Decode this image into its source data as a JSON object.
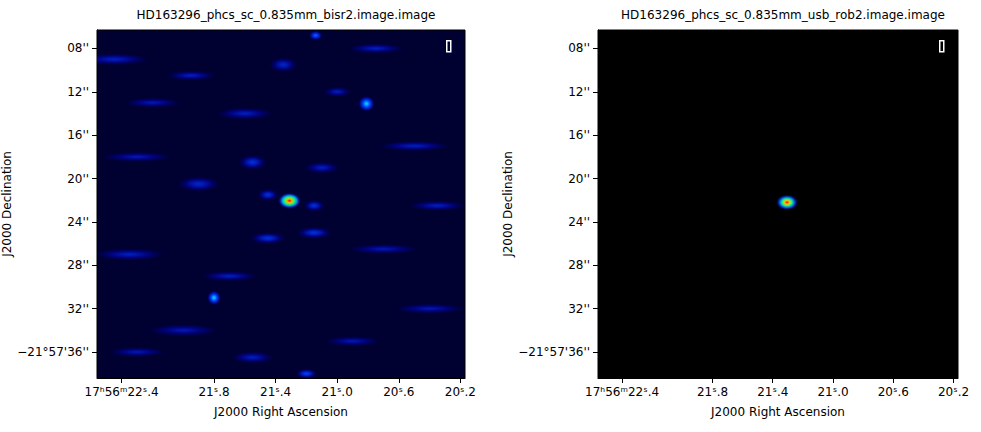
{
  "chart_data": [
    {
      "type": "image",
      "title": "HD163296_phcs_sc_0.835mm_bisr2.image.image",
      "x_label": "J2000 Right Ascension",
      "y_label": "J2000 Declination",
      "xlim": [
        22.56,
        20.17
      ],
      "xticks": [
        {
          "value": 22.4,
          "label": "17ʰ56ᵐ22ˢ.4"
        },
        {
          "value": 21.8,
          "label": "21ˢ.8"
        },
        {
          "value": 21.4,
          "label": "21ˢ.4"
        },
        {
          "value": 21.0,
          "label": "21ˢ.0"
        },
        {
          "value": 20.6,
          "label": "20ˢ.6"
        },
        {
          "value": 20.2,
          "label": "20ˢ.2"
        }
      ],
      "ylim": [
        38.4,
        6.3
      ],
      "yticks": [
        {
          "value": 8,
          "label": "08''"
        },
        {
          "value": 12,
          "label": "12''"
        },
        {
          "value": 16,
          "label": "16''"
        },
        {
          "value": 20,
          "label": "20''"
        },
        {
          "value": 24,
          "label": "24''"
        },
        {
          "value": 28,
          "label": "28''"
        },
        {
          "value": 32,
          "label": "32''"
        },
        {
          "value": 36,
          "label": "−21°57'36''"
        }
      ],
      "grid": false,
      "vlim": [
        0,
        1
      ],
      "floor": 0.08,
      "sources": [
        {
          "ra": 22.45,
          "dec": 9.0,
          "peak": 0.3,
          "width": 0.5,
          "height": 1.2
        },
        {
          "ra": 22.2,
          "dec": 13.0,
          "peak": 0.28,
          "width": 0.4,
          "height": 1.0
        },
        {
          "ra": 21.95,
          "dec": 10.5,
          "peak": 0.3,
          "width": 0.35,
          "height": 1.0
        },
        {
          "ra": 21.6,
          "dec": 14.0,
          "peak": 0.3,
          "width": 0.4,
          "height": 1.2
        },
        {
          "ra": 22.3,
          "dec": 18.0,
          "peak": 0.28,
          "width": 0.5,
          "height": 1.0
        },
        {
          "ra": 21.9,
          "dec": 20.5,
          "peak": 0.32,
          "width": 0.3,
          "height": 1.5
        },
        {
          "ra": 21.55,
          "dec": 18.5,
          "peak": 0.35,
          "width": 0.2,
          "height": 1.5
        },
        {
          "ra": 21.45,
          "dec": 25.5,
          "peak": 0.35,
          "width": 0.25,
          "height": 1.2
        },
        {
          "ra": 21.15,
          "dec": 25.0,
          "peak": 0.35,
          "width": 0.25,
          "height": 1.2
        },
        {
          "ra": 21.1,
          "dec": 19.0,
          "peak": 0.3,
          "width": 0.25,
          "height": 1.2
        },
        {
          "ra": 20.5,
          "dec": 17.0,
          "peak": 0.3,
          "width": 0.5,
          "height": 1.0
        },
        {
          "ra": 20.35,
          "dec": 22.5,
          "peak": 0.3,
          "width": 0.4,
          "height": 1.0
        },
        {
          "ra": 20.7,
          "dec": 26.5,
          "peak": 0.28,
          "width": 0.5,
          "height": 1.0
        },
        {
          "ra": 20.4,
          "dec": 32.0,
          "peak": 0.28,
          "width": 0.5,
          "height": 1.0
        },
        {
          "ra": 22.35,
          "dec": 27.0,
          "peak": 0.3,
          "width": 0.5,
          "height": 1.2
        },
        {
          "ra": 22.0,
          "dec": 34.0,
          "peak": 0.28,
          "width": 0.5,
          "height": 1.2
        },
        {
          "ra": 21.55,
          "dec": 36.5,
          "peak": 0.3,
          "width": 0.3,
          "height": 1.2
        },
        {
          "ra": 21.2,
          "dec": 38.0,
          "peak": 0.4,
          "width": 0.15,
          "height": 1.0
        },
        {
          "ra": 21.35,
          "dec": 9.5,
          "peak": 0.32,
          "width": 0.2,
          "height": 1.5
        },
        {
          "ra": 21.0,
          "dec": 12.0,
          "peak": 0.3,
          "width": 0.2,
          "height": 1.0
        },
        {
          "ra": 20.75,
          "dec": 8.0,
          "peak": 0.3,
          "width": 0.4,
          "height": 1.0
        },
        {
          "ra": 22.3,
          "dec": 36.0,
          "peak": 0.28,
          "width": 0.4,
          "height": 1.0
        },
        {
          "ra": 21.7,
          "dec": 29.0,
          "peak": 0.3,
          "width": 0.4,
          "height": 1.0
        },
        {
          "ra": 20.9,
          "dec": 35.0,
          "peak": 0.28,
          "width": 0.4,
          "height": 1.0
        },
        {
          "ra": 21.45,
          "dec": 21.5,
          "peak": 0.35,
          "width": 0.15,
          "height": 1.2
        },
        {
          "ra": 21.15,
          "dec": 22.5,
          "peak": 0.35,
          "width": 0.15,
          "height": 1.2
        },
        {
          "ra": 20.81,
          "dec": 13.1,
          "peak": 0.55,
          "width": 0.12,
          "height": 1.6
        },
        {
          "ra": 21.8,
          "dec": 31.0,
          "peak": 0.55,
          "width": 0.1,
          "height": 1.5
        },
        {
          "ra": 21.14,
          "dec": 6.8,
          "peak": 0.45,
          "width": 0.1,
          "height": 1.0
        },
        {
          "ra": 21.31,
          "dec": 22.05,
          "peak": 1.0,
          "width": 0.16,
          "height": 1.6
        }
      ]
    },
    {
      "type": "image",
      "title": "HD163296_phcs_sc_0.835mm_usb_rob2.image.image",
      "x_label": "J2000 Right Ascension",
      "y_label": "J2000 Declination",
      "xlim": [
        22.56,
        20.17
      ],
      "xticks": [
        {
          "value": 22.4,
          "label": "17ʰ56ᵐ22ˢ.4"
        },
        {
          "value": 21.8,
          "label": "21ˢ.8"
        },
        {
          "value": 21.4,
          "label": "21ˢ.4"
        },
        {
          "value": 21.0,
          "label": "21ˢ.0"
        },
        {
          "value": 20.6,
          "label": "20ˢ.6"
        },
        {
          "value": 20.2,
          "label": "20ˢ.2"
        }
      ],
      "ylim": [
        38.4,
        6.3
      ],
      "yticks": [
        {
          "value": 8,
          "label": "08''"
        },
        {
          "value": 12,
          "label": "12''"
        },
        {
          "value": 16,
          "label": "16''"
        },
        {
          "value": 20,
          "label": "20''"
        },
        {
          "value": 24,
          "label": "24''"
        },
        {
          "value": 28,
          "label": "28''"
        },
        {
          "value": 32,
          "label": "32''"
        },
        {
          "value": 36,
          "label": "−21°57'36''"
        }
      ],
      "grid": false,
      "vlim": [
        0,
        1
      ],
      "floor": 0,
      "sources": [
        {
          "ra": 21.305,
          "dec": 22.2,
          "peak": 1.0,
          "width": 0.16,
          "height": 1.6
        }
      ]
    }
  ]
}
